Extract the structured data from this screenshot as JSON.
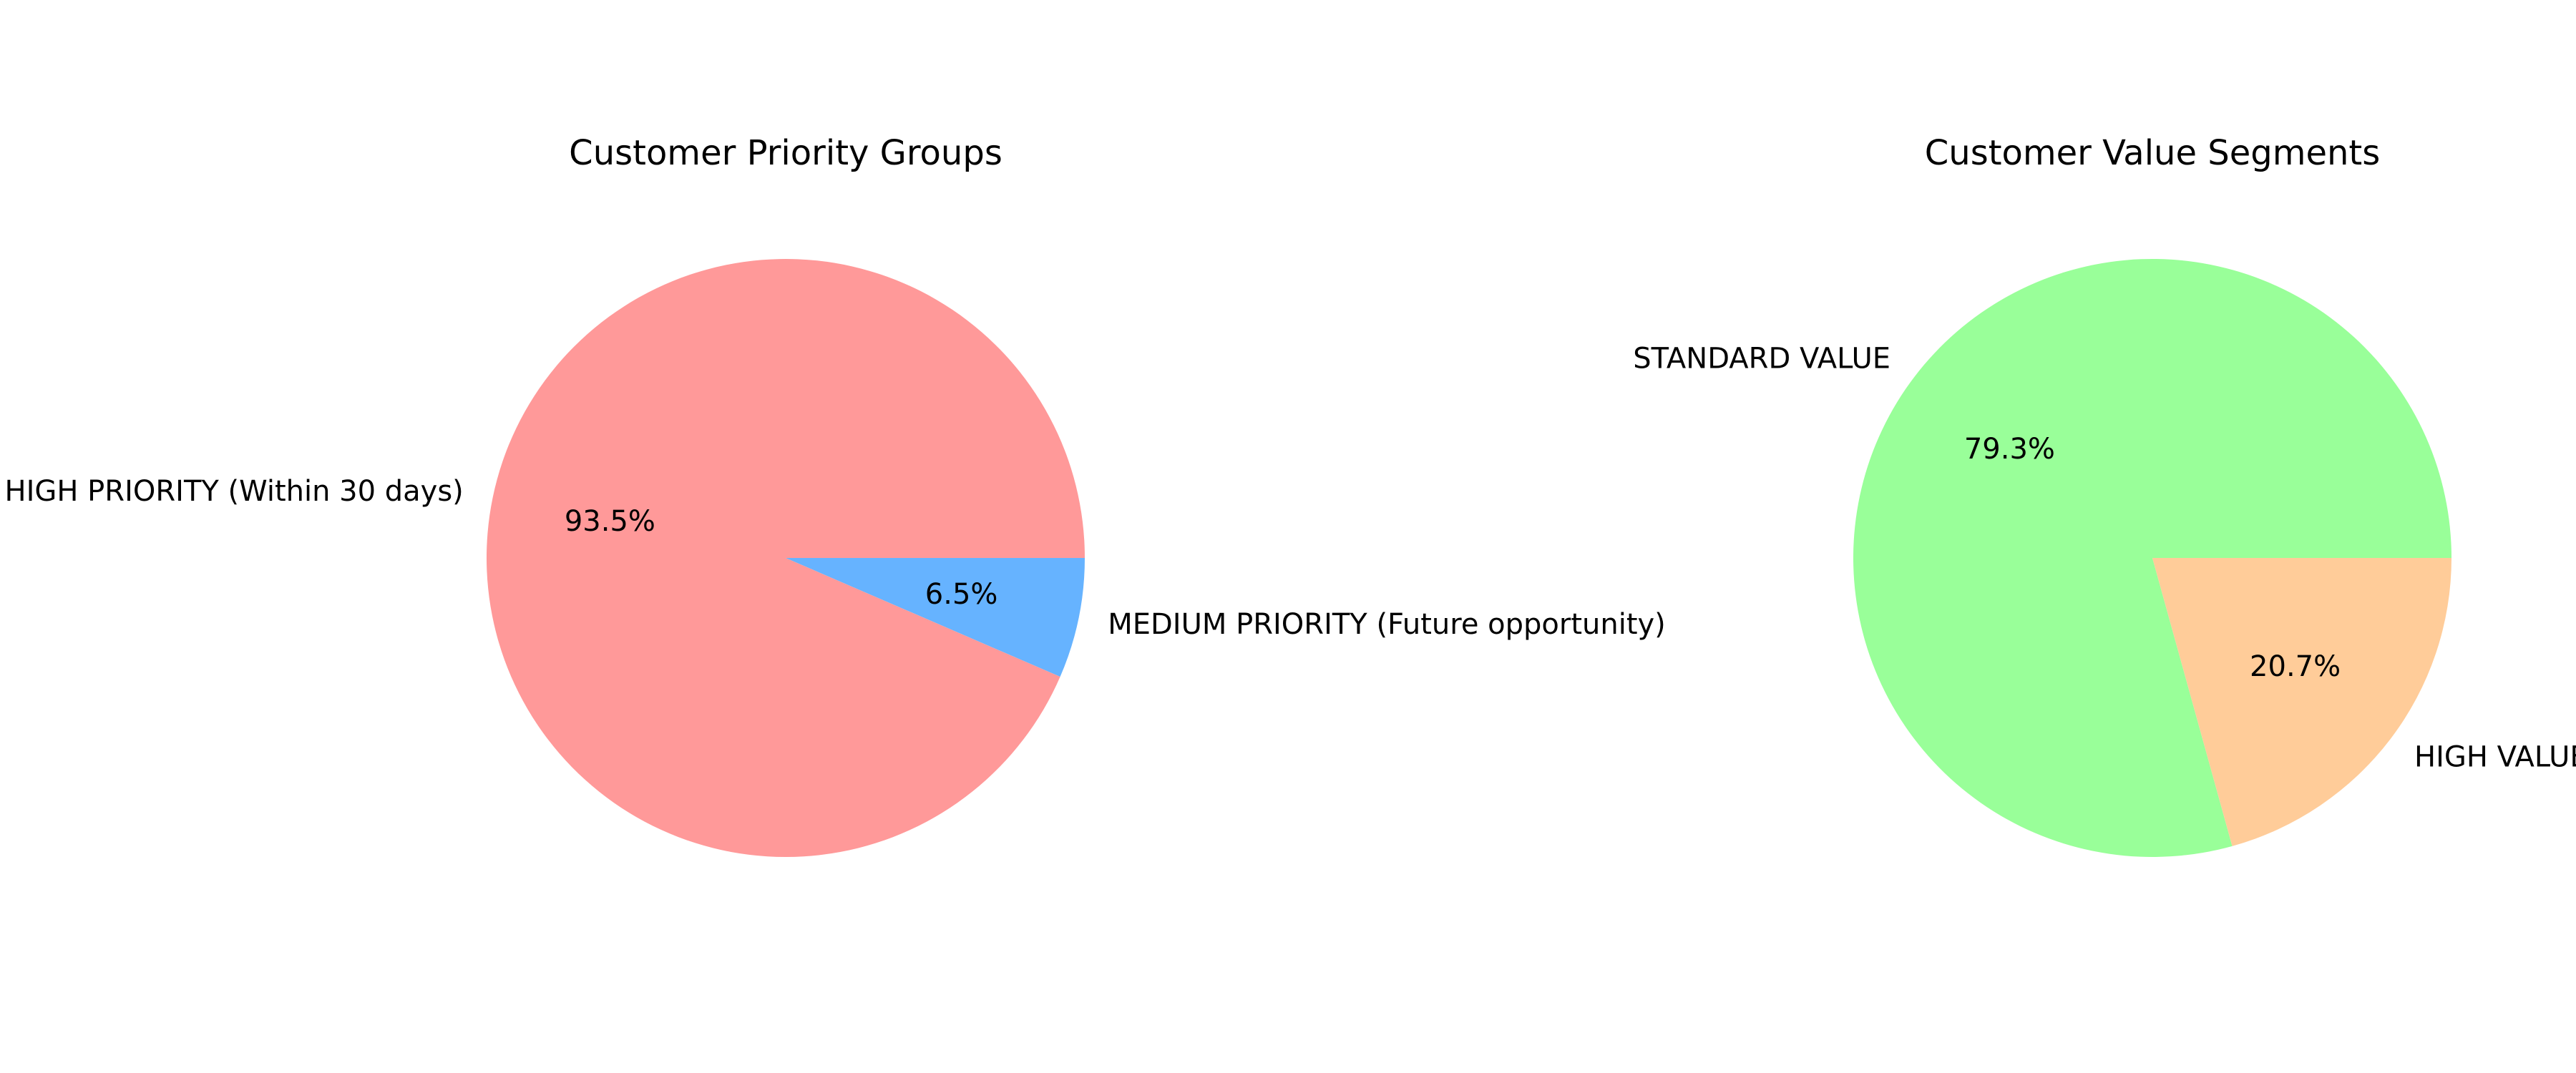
{
  "chart_data": [
    {
      "type": "pie",
      "title": "Customer Priority Groups",
      "categories": [
        "HIGH PRIORITY (Within 30 days)",
        "MEDIUM PRIORITY (Future opportunity)"
      ],
      "values": [
        93.5,
        6.5
      ],
      "percent_labels": [
        "93.5%",
        "6.5%"
      ],
      "colors": [
        "#ff9999",
        "#66b3ff"
      ],
      "start_angle_deg": 0,
      "direction": "counterclockwise"
    },
    {
      "type": "pie",
      "title": "Customer Value Segments",
      "categories": [
        "STANDARD VALUE",
        "HIGH VALUE"
      ],
      "values": [
        79.3,
        20.7
      ],
      "percent_labels": [
        "79.3%",
        "20.7%"
      ],
      "colors": [
        "#99ff99",
        "#ffcc99"
      ],
      "start_angle_deg": 0,
      "direction": "counterclockwise"
    }
  ]
}
